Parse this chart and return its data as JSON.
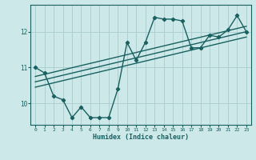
{
  "title": "",
  "xlabel": "Humidex (Indice chaleur)",
  "ylabel": "",
  "bg_color": "#cce8e8",
  "line_color": "#1a6060",
  "x_data": [
    0,
    1,
    2,
    3,
    4,
    5,
    6,
    7,
    8,
    9,
    10,
    11,
    12,
    13,
    14,
    15,
    16,
    17,
    18,
    19,
    20,
    21,
    22,
    23
  ],
  "y_data": [
    11.0,
    10.85,
    10.2,
    10.1,
    9.6,
    9.9,
    9.6,
    9.6,
    9.6,
    10.4,
    11.7,
    11.2,
    11.7,
    12.4,
    12.35,
    12.35,
    12.3,
    11.55,
    11.55,
    11.9,
    11.85,
    12.05,
    12.45,
    12.0
  ],
  "trend1_x": [
    0,
    23
  ],
  "trend1_y": [
    10.45,
    11.85
  ],
  "trend2_x": [
    0,
    23
  ],
  "trend2_y": [
    10.6,
    12.0
  ],
  "trend3_x": [
    0,
    23
  ],
  "trend3_y": [
    10.75,
    12.15
  ],
  "ylim": [
    9.4,
    12.75
  ],
  "xlim": [
    -0.5,
    23.5
  ],
  "yticks": [
    10,
    11,
    12
  ],
  "xticks": [
    0,
    1,
    2,
    3,
    4,
    5,
    6,
    7,
    8,
    9,
    10,
    11,
    12,
    13,
    14,
    15,
    16,
    17,
    18,
    19,
    20,
    21,
    22,
    23
  ],
  "grid_color": "#aacccc",
  "marker": "D",
  "marker_size": 2.2,
  "line_width": 1.0
}
